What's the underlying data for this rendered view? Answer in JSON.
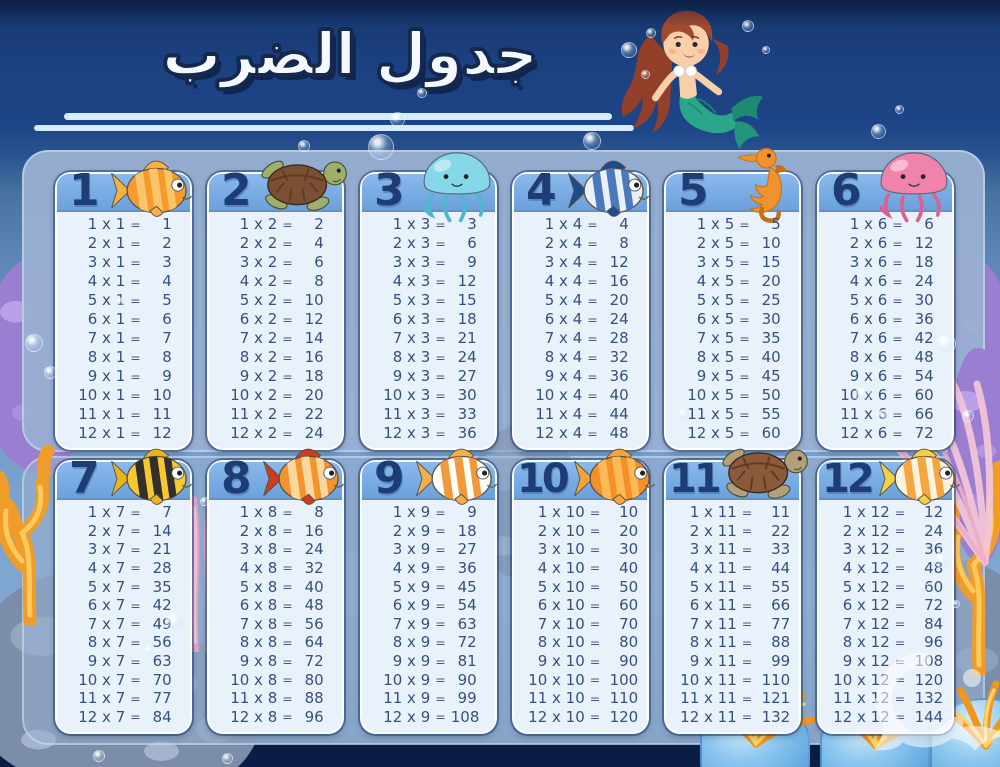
{
  "title": "جدول الضرب",
  "panels": [
    {
      "columns": [
        {
          "number": "1",
          "creature": {
            "name": "goldfish",
            "type": "fish",
            "body": "#f59b2e",
            "stripe": "#fcc468",
            "fin": "#f7b042"
          },
          "rows": [
            [
              "1 x 1",
              "1"
            ],
            [
              "2 x 1",
              "2"
            ],
            [
              "3 x 1",
              "3"
            ],
            [
              "4 x 1",
              "4"
            ],
            [
              "5 x 1",
              "5"
            ],
            [
              "6 x 1",
              "6"
            ],
            [
              "7 x 1",
              "7"
            ],
            [
              "8 x 1",
              "8"
            ],
            [
              "9 x 1",
              "9"
            ],
            [
              "10 x 1",
              "10"
            ],
            [
              "11 x 1",
              "11"
            ],
            [
              "12 x 1",
              "12"
            ]
          ]
        },
        {
          "number": "2",
          "creature": {
            "name": "sea-turtle",
            "type": "turtle",
            "shell": "#7b4f33",
            "skin": "#9fae6a"
          },
          "rows": [
            [
              "1 x 2",
              "2"
            ],
            [
              "2 x 2",
              "4"
            ],
            [
              "3 x 2",
              "6"
            ],
            [
              "4 x 2",
              "8"
            ],
            [
              "5 x 2",
              "10"
            ],
            [
              "6 x 2",
              "12"
            ],
            [
              "7 x 2",
              "14"
            ],
            [
              "8 x 2",
              "16"
            ],
            [
              "9 x 2",
              "18"
            ],
            [
              "10 x 2",
              "20"
            ],
            [
              "11 x 2",
              "22"
            ],
            [
              "12 x 2",
              "24"
            ]
          ]
        },
        {
          "number": "3",
          "creature": {
            "name": "blue-jellyfish",
            "type": "jelly",
            "body": "#86d8e8",
            "dark": "#4fb6d2"
          },
          "rows": [
            [
              "1 x 3",
              "3"
            ],
            [
              "2 x 3",
              "6"
            ],
            [
              "3 x 3",
              "9"
            ],
            [
              "4 x 3",
              "12"
            ],
            [
              "5 x 3",
              "15"
            ],
            [
              "6 x 3",
              "18"
            ],
            [
              "7 x 3",
              "21"
            ],
            [
              "8 x 3",
              "24"
            ],
            [
              "9 x 3",
              "27"
            ],
            [
              "10 x 3",
              "30"
            ],
            [
              "11 x 3",
              "33"
            ],
            [
              "12 x 3",
              "36"
            ]
          ]
        },
        {
          "number": "4",
          "creature": {
            "name": "blue-fish",
            "type": "fish",
            "body": "#e9f0f6",
            "stripe": "#4a79bc",
            "fin": "#1f4a8c"
          },
          "rows": [
            [
              "1 x 4",
              "4"
            ],
            [
              "2 x 4",
              "8"
            ],
            [
              "3 x 4",
              "12"
            ],
            [
              "4 x 4",
              "16"
            ],
            [
              "5 x 4",
              "20"
            ],
            [
              "6 x 4",
              "24"
            ],
            [
              "7 x 4",
              "28"
            ],
            [
              "8 x 4",
              "32"
            ],
            [
              "9 x 4",
              "36"
            ],
            [
              "10 x 4",
              "40"
            ],
            [
              "11 x 4",
              "44"
            ],
            [
              "12 x 4",
              "48"
            ]
          ]
        },
        {
          "number": "5",
          "creature": {
            "name": "seahorse",
            "type": "seahorse",
            "body": "#f0932f",
            "dark": "#c76f15"
          },
          "rows": [
            [
              "1 x 5",
              "5"
            ],
            [
              "2 x 5",
              "10"
            ],
            [
              "3 x 5",
              "15"
            ],
            [
              "4 x 5",
              "20"
            ],
            [
              "5 x 5",
              "25"
            ],
            [
              "6 x 5",
              "30"
            ],
            [
              "7 x 5",
              "35"
            ],
            [
              "8 x 5",
              "40"
            ],
            [
              "9 x 5",
              "45"
            ],
            [
              "10 x 5",
              "50"
            ],
            [
              "11 x 5",
              "55"
            ],
            [
              "12 x 5",
              "60"
            ]
          ]
        },
        {
          "number": "6",
          "creature": {
            "name": "pink-jellyfish",
            "type": "jelly",
            "body": "#f083ab",
            "dark": "#dd5e90"
          },
          "rows": [
            [
              "1 x 6",
              "6"
            ],
            [
              "2 x 6",
              "12"
            ],
            [
              "3 x 6",
              "18"
            ],
            [
              "4 x 6",
              "24"
            ],
            [
              "5 x 6",
              "30"
            ],
            [
              "6 x 6",
              "36"
            ],
            [
              "7 x 6",
              "42"
            ],
            [
              "8 x 6",
              "48"
            ],
            [
              "9 x 6",
              "54"
            ],
            [
              "10 x 6",
              "60"
            ],
            [
              "11 x 6",
              "66"
            ],
            [
              "12 x 6",
              "72"
            ]
          ]
        }
      ]
    },
    {
      "columns": [
        {
          "number": "7",
          "creature": {
            "name": "striped-fish",
            "type": "fish",
            "body": "#f6c832",
            "stripe": "#33302b",
            "fin": "#e9b41c"
          },
          "rows": [
            [
              "1 x 7",
              "7"
            ],
            [
              "2 x 7",
              "14"
            ],
            [
              "3 x 7",
              "21"
            ],
            [
              "4 x 7",
              "28"
            ],
            [
              "5 x 7",
              "35"
            ],
            [
              "6 x 7",
              "42"
            ],
            [
              "7 x 7",
              "49"
            ],
            [
              "8 x 7",
              "56"
            ],
            [
              "9 x 7",
              "63"
            ],
            [
              "10 x 7",
              "70"
            ],
            [
              "11 x 7",
              "77"
            ],
            [
              "12 x 7",
              "84"
            ]
          ]
        },
        {
          "number": "8",
          "creature": {
            "name": "lionfish",
            "type": "fish",
            "body": "#f5932e",
            "stripe": "#fbd79e",
            "fin": "#cc3d1d"
          },
          "rows": [
            [
              "1 x 8",
              "8"
            ],
            [
              "2 x 8",
              "16"
            ],
            [
              "3 x 8",
              "24"
            ],
            [
              "4 x 8",
              "32"
            ],
            [
              "5 x 8",
              "40"
            ],
            [
              "6 x 8",
              "48"
            ],
            [
              "7 x 8",
              "56"
            ],
            [
              "8 x 8",
              "64"
            ],
            [
              "9 x 8",
              "72"
            ],
            [
              "10 x 8",
              "80"
            ],
            [
              "11 x 8",
              "88"
            ],
            [
              "12 x 8",
              "96"
            ]
          ]
        },
        {
          "number": "9",
          "creature": {
            "name": "clown-fish",
            "type": "fish",
            "body": "#fdfcf7",
            "stripe": "#f09a3c",
            "fin": "#f3ae4e"
          },
          "rows": [
            [
              "1 x 9",
              "9"
            ],
            [
              "2 x 9",
              "18"
            ],
            [
              "3 x 9",
              "27"
            ],
            [
              "4 x 9",
              "36"
            ],
            [
              "5 x 9",
              "45"
            ],
            [
              "6 x 9",
              "54"
            ],
            [
              "7 x 9",
              "63"
            ],
            [
              "8 x 9",
              "72"
            ],
            [
              "9 x 9",
              "81"
            ],
            [
              "10 x 9",
              "90"
            ],
            [
              "11 x 9",
              "99"
            ],
            [
              "12 x 9",
              "108"
            ]
          ]
        },
        {
          "number": "10",
          "creature": {
            "name": "goldfish",
            "type": "fish",
            "body": "#f58f28",
            "stripe": "#fbba55",
            "fin": "#f3a43a"
          },
          "rows": [
            [
              "1 x 10",
              "10"
            ],
            [
              "2 x 10",
              "20"
            ],
            [
              "3 x 10",
              "30"
            ],
            [
              "4 x 10",
              "40"
            ],
            [
              "5 x 10",
              "50"
            ],
            [
              "6 x 10",
              "60"
            ],
            [
              "7 x 10",
              "70"
            ],
            [
              "8 x 10",
              "80"
            ],
            [
              "9 x 10",
              "90"
            ],
            [
              "10 x 10",
              "100"
            ],
            [
              "11 x 10",
              "110"
            ],
            [
              "12 x 10",
              "120"
            ]
          ]
        },
        {
          "number": "11",
          "creature": {
            "name": "sea-turtle",
            "type": "turtle",
            "shell": "#8a5a3b",
            "skin": "#b3a079"
          },
          "rows": [
            [
              "1 x 11",
              "11"
            ],
            [
              "2 x 11",
              "22"
            ],
            [
              "3 x 11",
              "33"
            ],
            [
              "4 x 11",
              "44"
            ],
            [
              "5 x 11",
              "55"
            ],
            [
              "6 x 11",
              "66"
            ],
            [
              "7 x 11",
              "77"
            ],
            [
              "8 x 11",
              "88"
            ],
            [
              "9 x 11",
              "99"
            ],
            [
              "10 x 11",
              "110"
            ],
            [
              "11 x 11",
              "121"
            ],
            [
              "12 x 11",
              "132"
            ]
          ]
        },
        {
          "number": "12",
          "creature": {
            "name": "butterflyfish",
            "type": "fish",
            "body": "#fdf3dd",
            "stripe": "#f2a741",
            "fin": "#f6cf45"
          },
          "rows": [
            [
              "1 x 12",
              "12"
            ],
            [
              "2 x 12",
              "24"
            ],
            [
              "3 x 12",
              "36"
            ],
            [
              "4 x 12",
              "48"
            ],
            [
              "5 x 12",
              "60"
            ],
            [
              "6 x 12",
              "72"
            ],
            [
              "7 x 12",
              "84"
            ],
            [
              "8 x 12",
              "96"
            ],
            [
              "9 x 12",
              "108"
            ],
            [
              "10 x 12",
              "120"
            ],
            [
              "11 x 12",
              "132"
            ],
            [
              "12 x 12",
              "144"
            ]
          ]
        }
      ]
    }
  ],
  "colors": {
    "background_top": "#1d4486",
    "water": "#6d95c3",
    "panel": "#99b0d1",
    "card_body": "#e9f1fb",
    "card_header": "#79ade2",
    "number_text": "#1e3d77",
    "equation_text": "#36507e",
    "title_text": "#f5f9ff",
    "underline": "#d6ecfb"
  }
}
